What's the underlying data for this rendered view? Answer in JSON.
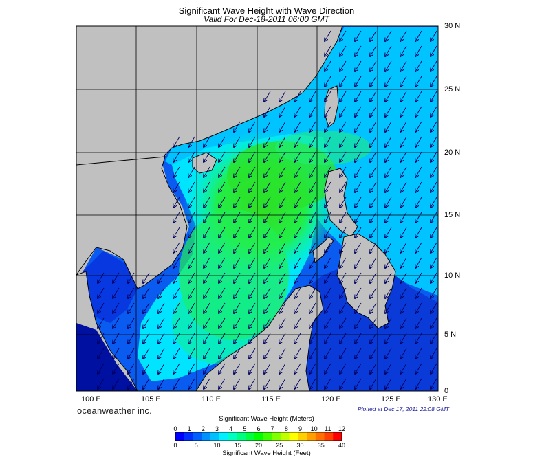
{
  "title": "Significant Wave Height with Wave Direction",
  "subtitle": "Valid For Dec-18-2011 06:00 GMT",
  "brand": "oceanweather inc.",
  "plotted": "Plotted at Dec 17, 2011 22:08 GMT",
  "map": {
    "lon_range": [
      100,
      130
    ],
    "lat_range": [
      0,
      30
    ],
    "lon_labels": [
      "100 E",
      "105 E",
      "110 E",
      "115 E",
      "120 E",
      "125 E",
      "130 E"
    ],
    "lat_labels": [
      "30 N",
      "25 N",
      "20 N",
      "15 N",
      "10 N",
      "5 N",
      "0"
    ],
    "colors": {
      "land": "#c0c0c0",
      "open_sea_low": "#0050ff",
      "sea_moderate": "#00e0ff",
      "sea_high": "#00ff40",
      "sea_peak": "#33dd22"
    },
    "wave_direction": "arrows pointing south-southwest (from NE monsoon)"
  },
  "colorbar": {
    "title_meters": "Significant Wave Height (Meters)",
    "title_feet": "Significant Wave Height (Feet)",
    "meter_ticks": [
      "0",
      "1",
      "2",
      "3",
      "4",
      "5",
      "6",
      "7",
      "8",
      "9",
      "10",
      "11",
      "12"
    ],
    "feet_ticks": [
      "0",
      "5",
      "10",
      "15",
      "20",
      "25",
      "30",
      "35",
      "40"
    ],
    "colors": [
      "#0000ff",
      "#0030ff",
      "#0060ff",
      "#0090ff",
      "#00c0ff",
      "#00f0ff",
      "#00ffc0",
      "#00ff80",
      "#00ff40",
      "#00ff00",
      "#40ff00",
      "#80ff00",
      "#c0ff00",
      "#ffff00",
      "#ffd000",
      "#ffa000",
      "#ff7000",
      "#ff4000",
      "#ff0000"
    ]
  }
}
